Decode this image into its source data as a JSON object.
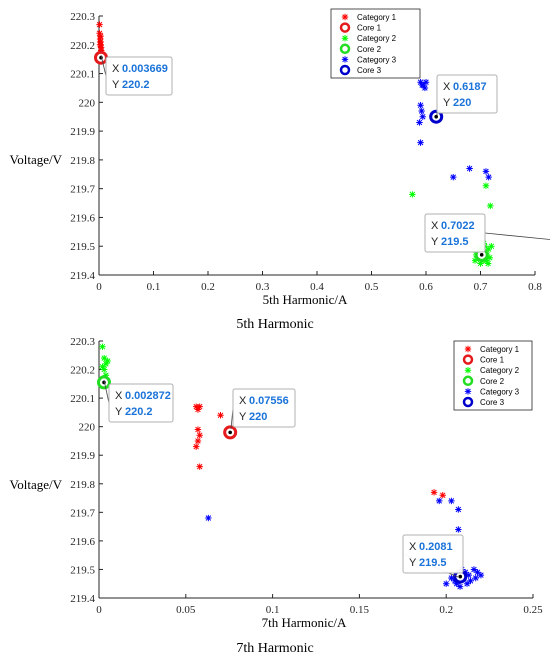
{
  "chart_data": [
    {
      "type": "scatter",
      "caption": "5th Harmonic",
      "xlabel": "5th Harmonic/A",
      "ylabel": "Voltage/V",
      "xlim": [
        0,
        0.8
      ],
      "ylim": [
        219.4,
        220.3
      ],
      "xticks": [
        "0",
        "0.1",
        "0.2",
        "0.3",
        "0.4",
        "0.5",
        "0.6",
        "0.7",
        "0.8"
      ],
      "yticks": [
        "219.4",
        "219.5",
        "219.6",
        "219.7",
        "219.8",
        "219.9",
        "220",
        "220.1",
        "220.2",
        "220.3"
      ],
      "legend_position": "top-right",
      "series": [
        {
          "name": "Category 1",
          "color": "#ff0000",
          "points": [
            [
              0.001,
              220.27
            ],
            [
              0.001,
              220.24
            ],
            [
              0.002,
              220.22
            ],
            [
              0.003,
              220.21
            ],
            [
              0.003,
              220.2
            ],
            [
              0.004,
              220.19
            ],
            [
              0.004,
              220.18
            ],
            [
              0.005,
              220.16
            ],
            [
              0.004,
              220.15
            ],
            [
              0.002,
              220.2
            ],
            [
              0.003,
              220.23
            ]
          ]
        },
        {
          "name": "Category 2",
          "color": "#00ff00",
          "points": [
            [
              0.575,
              219.68
            ],
            [
              0.71,
              219.71
            ],
            [
              0.718,
              219.64
            ],
            [
              0.69,
              219.45
            ],
            [
              0.695,
              219.46
            ],
            [
              0.7,
              219.47
            ],
            [
              0.705,
              219.48
            ],
            [
              0.71,
              219.45
            ],
            [
              0.715,
              219.49
            ],
            [
              0.72,
              219.5
            ],
            [
              0.7,
              219.44
            ],
            [
              0.708,
              219.5
            ],
            [
              0.712,
              219.47
            ],
            [
              0.698,
              219.49
            ],
            [
              0.703,
              219.45
            ],
            [
              0.717,
              219.46
            ],
            [
              0.692,
              219.47
            ],
            [
              0.706,
              219.51
            ],
            [
              0.714,
              219.44
            ],
            [
              0.701,
              219.46
            ]
          ]
        },
        {
          "name": "Category 3",
          "color": "#0000ff",
          "points": [
            [
              0.59,
              220.07
            ],
            [
              0.595,
              220.06
            ],
            [
              0.6,
              220.07
            ],
            [
              0.598,
              220.05
            ],
            [
              0.593,
              220.06
            ],
            [
              0.59,
              219.99
            ],
            [
              0.592,
              219.97
            ],
            [
              0.594,
              219.95
            ],
            [
              0.588,
              219.93
            ],
            [
              0.59,
              219.86
            ],
            [
              0.68,
              219.77
            ],
            [
              0.65,
              219.74
            ],
            [
              0.71,
              219.76
            ],
            [
              0.715,
              219.74
            ]
          ]
        },
        {
          "name": "Core 1",
          "color": "#e41a1c",
          "marker": "ring",
          "points": [
            [
              0.003669,
              220.155
            ]
          ]
        },
        {
          "name": "Core 2",
          "color": "#22dd22",
          "marker": "ring",
          "points": [
            [
              0.7022,
              219.47
            ]
          ]
        },
        {
          "name": "Core 3",
          "color": "#0000cc",
          "marker": "ring",
          "points": [
            [
              0.6187,
              219.95
            ]
          ]
        }
      ],
      "annotations": [
        {
          "x_label": "X",
          "y_label": "Y",
          "x_text": "0.003669",
          "y_text": "220.2"
        },
        {
          "x_label": "X",
          "y_label": "Y",
          "x_text": "0.6187",
          "y_text": "220"
        },
        {
          "x_label": "X",
          "y_label": "Y",
          "x_text": "0.7022",
          "y_text": "219.5"
        }
      ]
    },
    {
      "type": "scatter",
      "caption": "7th Harmonic",
      "xlabel": "7th Harmonic/A",
      "ylabel": "Voltage/V",
      "xlim": [
        0,
        0.25
      ],
      "ylim": [
        219.4,
        220.3
      ],
      "xticks": [
        "0",
        "0.05",
        "0.1",
        "0.15",
        "0.2",
        "0.25"
      ],
      "yticks": [
        "219.4",
        "219.5",
        "219.6",
        "219.7",
        "219.8",
        "219.9",
        "220",
        "220.1",
        "220.2",
        "220.3"
      ],
      "legend_position": "top-right",
      "series": [
        {
          "name": "Category 1",
          "color": "#ff0000",
          "points": [
            [
              0.056,
              220.07
            ],
            [
              0.057,
              220.06
            ],
            [
              0.058,
              220.07
            ],
            [
              0.057,
              219.99
            ],
            [
              0.058,
              219.97
            ],
            [
              0.057,
              219.95
            ],
            [
              0.056,
              219.93
            ],
            [
              0.058,
              219.86
            ],
            [
              0.07,
              220.04
            ],
            [
              0.193,
              219.77
            ],
            [
              0.198,
              219.76
            ]
          ]
        },
        {
          "name": "Category 2",
          "color": "#00ff00",
          "points": [
            [
              0.002,
              220.28
            ],
            [
              0.003,
              220.24
            ],
            [
              0.004,
              220.22
            ],
            [
              0.005,
              220.23
            ],
            [
              0.003,
              220.2
            ],
            [
              0.004,
              220.18
            ],
            [
              0.005,
              220.16
            ],
            [
              0.002,
              220.21
            ],
            [
              0.004,
              220.15
            ]
          ]
        },
        {
          "name": "Category 3",
          "color": "#0000ff",
          "points": [
            [
              0.063,
              219.68
            ],
            [
              0.196,
              219.74
            ],
            [
              0.203,
              219.74
            ],
            [
              0.207,
              219.71
            ],
            [
              0.207,
              219.64
            ],
            [
              0.2,
              219.45
            ],
            [
              0.205,
              219.46
            ],
            [
              0.21,
              219.47
            ],
            [
              0.213,
              219.48
            ],
            [
              0.216,
              219.5
            ],
            [
              0.208,
              219.44
            ],
            [
              0.212,
              219.45
            ],
            [
              0.218,
              219.49
            ],
            [
              0.203,
              219.47
            ],
            [
              0.214,
              219.46
            ],
            [
              0.209,
              219.5
            ],
            [
              0.22,
              219.48
            ],
            [
              0.206,
              219.45
            ],
            [
              0.211,
              219.49
            ],
            [
              0.217,
              219.47
            ]
          ]
        },
        {
          "name": "Core 1",
          "color": "#e41a1c",
          "marker": "ring",
          "points": [
            [
              0.07556,
              219.98
            ]
          ]
        },
        {
          "name": "Core 2",
          "color": "#22dd22",
          "marker": "ring",
          "points": [
            [
              0.002872,
              220.155
            ]
          ]
        },
        {
          "name": "Core 3",
          "color": "#0000cc",
          "marker": "ring",
          "points": [
            [
              0.2081,
              219.475
            ]
          ]
        }
      ],
      "annotations": [
        {
          "x_label": "X",
          "y_label": "Y",
          "x_text": "0.002872",
          "y_text": "220.2"
        },
        {
          "x_label": "X",
          "y_label": "Y",
          "x_text": "0.07556",
          "y_text": "220"
        },
        {
          "x_label": "X",
          "y_label": "Y",
          "x_text": "0.2081",
          "y_text": "219.5"
        }
      ]
    }
  ]
}
